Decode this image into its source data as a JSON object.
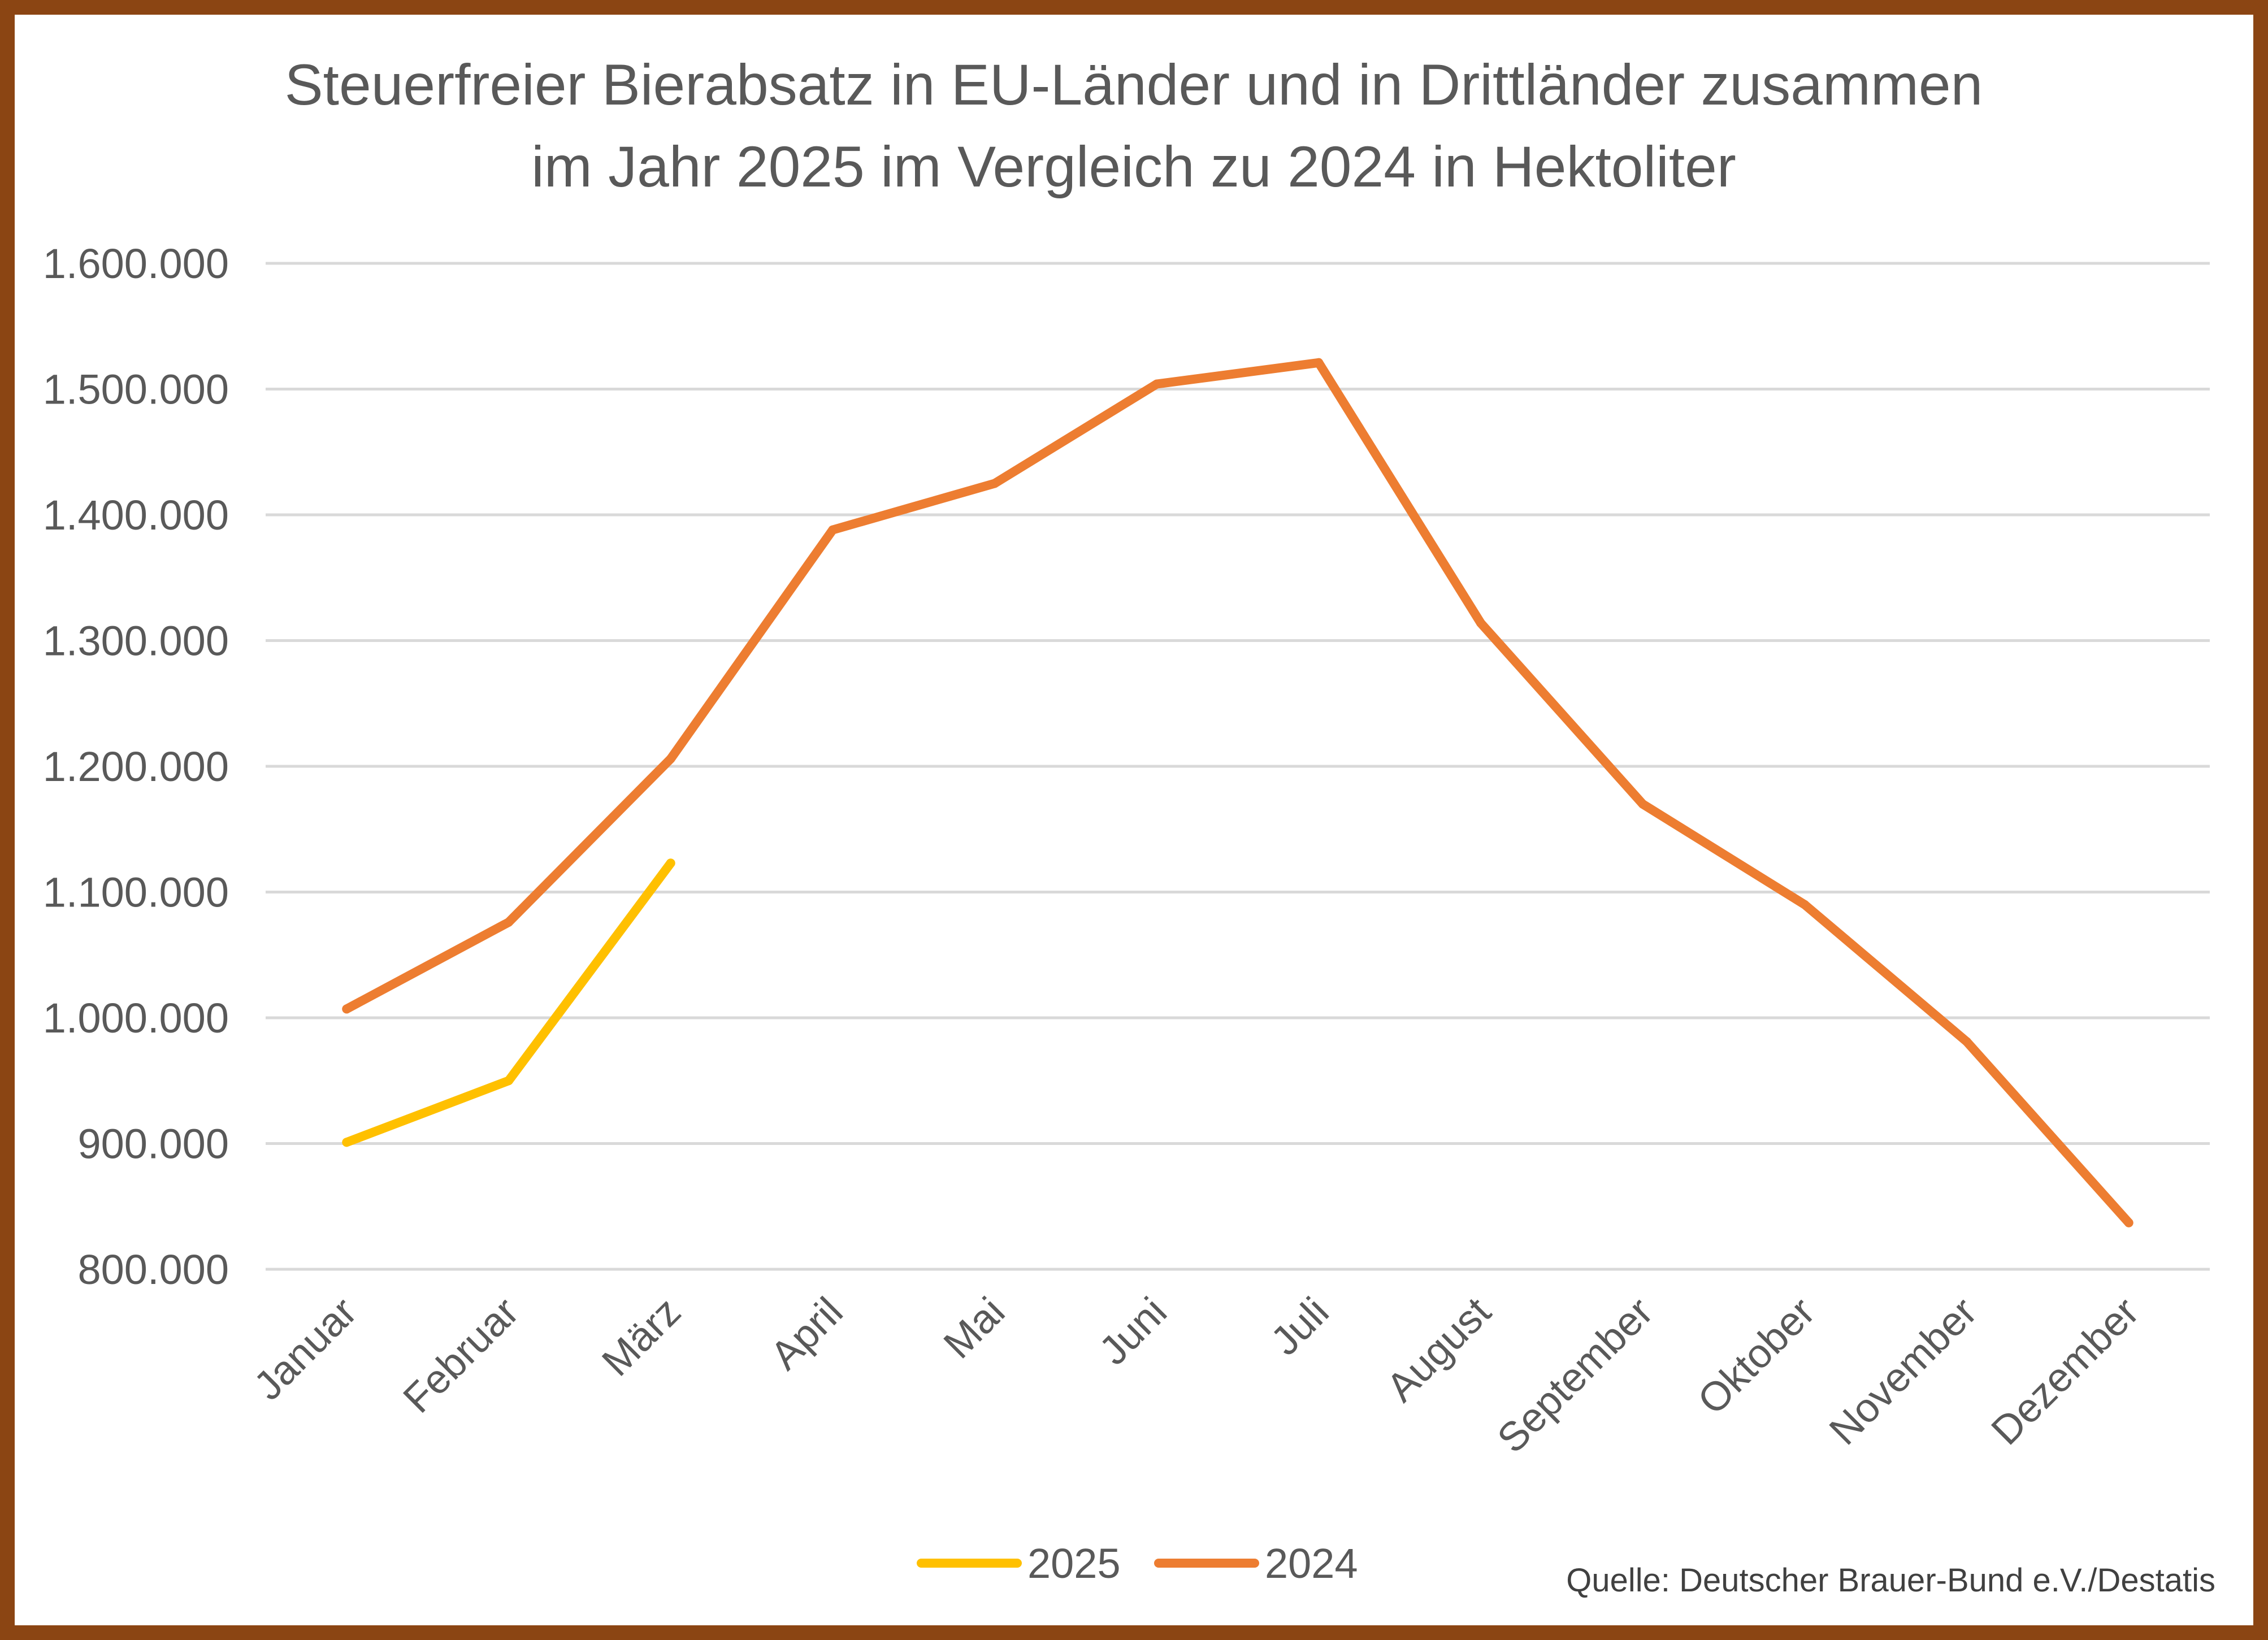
{
  "chart_data": {
    "type": "line",
    "title_lines": [
      "Steuerfreier Bierabsatz in EU-Länder und in Drittländer zusammen",
      "im Jahr 2025 im Vergleich zu 2024 in Hektoliter"
    ],
    "categories": [
      "Januar",
      "Februar",
      "März",
      "April",
      "Mai",
      "Juni",
      "Juli",
      "August",
      "September",
      "Oktober",
      "November",
      "Dezember"
    ],
    "series": [
      {
        "name": "2025",
        "color": "#FFC000",
        "values": [
          901000,
          950000,
          1123000,
          null,
          null,
          null,
          null,
          null,
          null,
          null,
          null,
          null
        ]
      },
      {
        "name": "2024",
        "color": "#ED7D31",
        "values": [
          1007000,
          1076000,
          1206000,
          1388000,
          1425000,
          1504000,
          1521000,
          1314000,
          1170000,
          1090000,
          981000,
          837000
        ]
      }
    ],
    "ylim": [
      800000,
      1600000
    ],
    "yticks": [
      "800.000",
      "900.000",
      "1.000.000",
      "1.100.000",
      "1.200.000",
      "1.300.000",
      "1.400.000",
      "1.500.000",
      "1.600.000"
    ],
    "ytick_values": [
      800000,
      900000,
      1000000,
      1100000,
      1200000,
      1300000,
      1400000,
      1500000,
      1600000
    ],
    "grid": true,
    "legend_position": "bottom",
    "source": "Quelle: Deutscher Brauer-Bund e.V./Destatis"
  },
  "colors": {
    "frame": "#8B4513",
    "grid": "#D9D9D9",
    "text": "#595959"
  }
}
